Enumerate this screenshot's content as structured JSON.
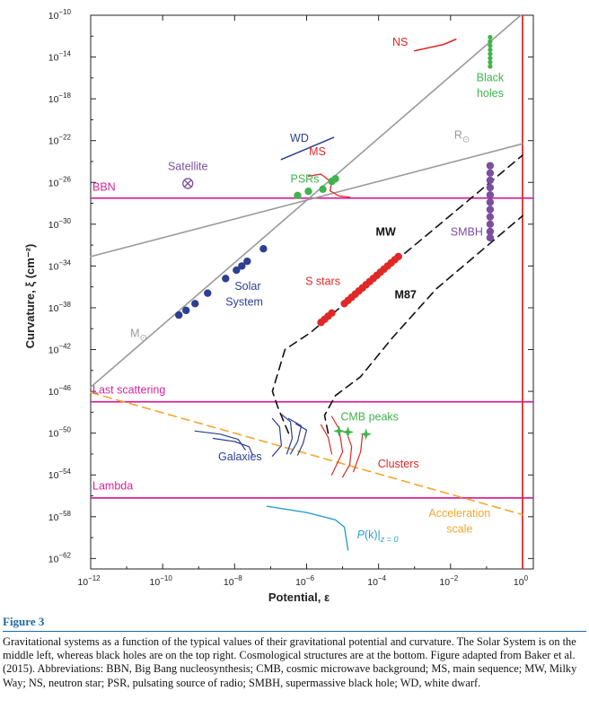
{
  "figure": {
    "label": "Figure 3",
    "caption": "Gravitational systems as a function of the typical values of their gravitational potential and curvature. The Solar System is on the middle left, whereas black holes are on the top right. Cosmological structures are at the bottom. Figure adapted from Baker et al. (2015). Abbreviations: BBN, Big Bang nucleosynthesis; CMB, cosmic microwave background; MS, main sequence; MW, Milky Way; NS, neutron star; PSR, pulsating source of radio; SMBH, supermassive black hole; WD, white dwarf."
  },
  "chart_data": {
    "type": "scatter",
    "xlabel": "Potential, ε",
    "ylabel": "Curvature, ξ (cm⁻²)",
    "x_scale": "log",
    "y_scale": "log",
    "xlim_log10": [
      -12,
      0.3
    ],
    "ylim_log10": [
      -63,
      -10
    ],
    "x_ticks": [
      {
        "exp": -12,
        "label": "10",
        "sup": "−12"
      },
      {
        "exp": -10,
        "label": "10",
        "sup": "−10"
      },
      {
        "exp": -8,
        "label": "10",
        "sup": "−8"
      },
      {
        "exp": -6,
        "label": "10",
        "sup": "−6"
      },
      {
        "exp": -4,
        "label": "10",
        "sup": "−4"
      },
      {
        "exp": -2,
        "label": "10",
        "sup": "−2"
      },
      {
        "exp": 0,
        "label": "10",
        "sup": "0"
      }
    ],
    "y_ticks": [
      {
        "exp": -10,
        "label": "10",
        "sup": "−10"
      },
      {
        "exp": -14,
        "label": "10",
        "sup": "−14"
      },
      {
        "exp": -18,
        "label": "10",
        "sup": "−18"
      },
      {
        "exp": -22,
        "label": "10",
        "sup": "−22"
      },
      {
        "exp": -26,
        "label": "10",
        "sup": "−26"
      },
      {
        "exp": -30,
        "label": "10",
        "sup": "−30"
      },
      {
        "exp": -34,
        "label": "10",
        "sup": "−34"
      },
      {
        "exp": -38,
        "label": "10",
        "sup": "−38"
      },
      {
        "exp": -42,
        "label": "10",
        "sup": "−42"
      },
      {
        "exp": -46,
        "label": "10",
        "sup": "−46"
      },
      {
        "exp": -50,
        "label": "10",
        "sup": "−50"
      },
      {
        "exp": -54,
        "label": "10",
        "sup": "−54"
      },
      {
        "exp": -58,
        "label": "10",
        "sup": "−58"
      },
      {
        "exp": -62,
        "label": "10",
        "sup": "−62"
      }
    ],
    "colors": {
      "axis": "#222222",
      "gray": "#9a9a9a",
      "magenta": "#d4249a",
      "red": "#e02826",
      "blue": "#2d3f93",
      "green": "#3fb44b",
      "purple": "#7a4fa0",
      "orange": "#f0a830",
      "cyan": "#2a9fd0",
      "black": "#111111"
    },
    "hlines": [
      {
        "name": "BBN",
        "y": -27.5,
        "color": "magenta"
      },
      {
        "name": "Last scattering",
        "y": -47.0,
        "color": "magenta"
      },
      {
        "name": "Lambda",
        "y": -56.2,
        "color": "magenta"
      }
    ],
    "vlines": [
      {
        "x": 0,
        "color": "red"
      }
    ],
    "lines": [
      {
        "name": "M⊙",
        "color": "gray",
        "width": 1.6,
        "dash": false,
        "points": [
          [
            -12,
            -45.6
          ],
          [
            -0.05,
            -10
          ]
        ]
      },
      {
        "name": "R⊙",
        "color": "gray",
        "width": 1.6,
        "dash": false,
        "points": [
          [
            -12,
            -33.1
          ],
          [
            0,
            -22.3
          ]
        ]
      },
      {
        "name": "MW",
        "color": "black",
        "width": 1.6,
        "dash": true,
        "points": [
          [
            -6.5,
            -50
          ],
          [
            -6.8,
            -47.5
          ],
          [
            -6.95,
            -46
          ],
          [
            -6.6,
            -42
          ],
          [
            -5.9,
            -40.4
          ],
          [
            -4.6,
            -36.6
          ],
          [
            0,
            -23.4
          ]
        ]
      },
      {
        "name": "M87",
        "color": "black",
        "width": 1.6,
        "dash": true,
        "points": [
          [
            -5.4,
            -50
          ],
          [
            -5.5,
            -48.3
          ],
          [
            -5.2,
            -46.4
          ],
          [
            -4.5,
            -44.6
          ],
          [
            -3.6,
            -40.8
          ],
          [
            -2.4,
            -36.2
          ],
          [
            0,
            -29.2
          ]
        ]
      },
      {
        "name": "Acceleration scale",
        "color": "orange",
        "width": 1.6,
        "dash": true,
        "points": [
          [
            -12,
            -46.1
          ],
          [
            0,
            -57.8
          ]
        ]
      },
      {
        "name": "WD",
        "color": "blue",
        "width": 1.6,
        "dash": false,
        "points": [
          [
            -6.7,
            -23.8
          ],
          [
            -5.25,
            -21.7
          ]
        ]
      },
      {
        "name": "NS",
        "color": "red",
        "width": 1.6,
        "dash": false,
        "points": [
          [
            -3.0,
            -13.4
          ],
          [
            -2.2,
            -12.8
          ],
          [
            -1.85,
            -12.3
          ]
        ]
      },
      {
        "name": "MS",
        "color": "red",
        "width": 1.3,
        "dash": false,
        "points": [
          [
            -5.95,
            -25.4
          ],
          [
            -5.6,
            -25.2
          ],
          [
            -5.3,
            -26.0
          ],
          [
            -5.35,
            -26.8
          ],
          [
            -5.1,
            -27.3
          ],
          [
            -4.8,
            -27.4
          ]
        ]
      },
      {
        "name": "P(k)|z=0",
        "color": "cyan",
        "width": 1.4,
        "dash": false,
        "points": [
          [
            -7.1,
            -57.0
          ],
          [
            -6.0,
            -57.6
          ],
          [
            -5.2,
            -58.3
          ],
          [
            -4.95,
            -59.0
          ],
          [
            -4.85,
            -61.2
          ]
        ]
      },
      {
        "name": "Galaxies 1",
        "color": "blue",
        "width": 1.2,
        "dash": false,
        "points": [
          [
            -9.1,
            -49.8
          ],
          [
            -8.4,
            -50.1
          ],
          [
            -7.9,
            -50.6
          ],
          [
            -7.7,
            -51.6
          ]
        ]
      },
      {
        "name": "Galaxies 2",
        "color": "blue",
        "width": 1.2,
        "dash": false,
        "points": [
          [
            -8.6,
            -50.5
          ],
          [
            -8.0,
            -50.8
          ],
          [
            -7.6,
            -51.3
          ],
          [
            -7.5,
            -52.1
          ]
        ]
      },
      {
        "name": "Galaxies 3",
        "color": "blue",
        "width": 1.2,
        "dash": false,
        "points": [
          [
            -6.7,
            -48.2
          ],
          [
            -6.45,
            -48.9
          ],
          [
            -6.4,
            -50.5
          ],
          [
            -6.55,
            -52.0
          ]
        ]
      },
      {
        "name": "Galaxies 4",
        "color": "blue",
        "width": 1.2,
        "dash": false,
        "points": [
          [
            -6.5,
            -48.6
          ],
          [
            -6.15,
            -49.3
          ],
          [
            -6.25,
            -50.8
          ],
          [
            -6.45,
            -52.0
          ]
        ]
      },
      {
        "name": "Galaxies 5",
        "color": "blue",
        "width": 1.2,
        "dash": false,
        "points": [
          [
            -6.3,
            -49.1
          ],
          [
            -6.0,
            -49.7
          ],
          [
            -6.1,
            -51.0
          ],
          [
            -6.25,
            -52.1
          ]
        ]
      },
      {
        "name": "Galaxies 6",
        "color": "blue",
        "width": 1.2,
        "dash": false,
        "points": [
          [
            -6.95,
            -48.6
          ],
          [
            -6.75,
            -49.4
          ],
          [
            -6.7,
            -51.2
          ],
          [
            -6.95,
            -52.2
          ]
        ]
      },
      {
        "name": "Clusters 1",
        "color": "red",
        "width": 1.2,
        "dash": false,
        "points": [
          [
            -5.3,
            -48.4
          ],
          [
            -5.1,
            -49.6
          ],
          [
            -5.0,
            -51.8
          ],
          [
            -5.3,
            -54.0
          ]
        ]
      },
      {
        "name": "Clusters 2",
        "color": "red",
        "width": 1.2,
        "dash": false,
        "points": [
          [
            -4.9,
            -49.8
          ],
          [
            -4.75,
            -51.3
          ],
          [
            -4.8,
            -53.0
          ],
          [
            -5.0,
            -54.2
          ]
        ]
      },
      {
        "name": "Clusters 3",
        "color": "red",
        "width": 1.2,
        "dash": false,
        "points": [
          [
            -4.45,
            -50.2
          ],
          [
            -4.5,
            -51.8
          ],
          [
            -4.7,
            -53.7
          ]
        ]
      },
      {
        "name": "Clusters 4",
        "color": "red",
        "width": 1.2,
        "dash": false,
        "points": [
          [
            -5.6,
            -49.2
          ],
          [
            -5.4,
            -50.4
          ],
          [
            -5.3,
            -52.0
          ]
        ]
      }
    ],
    "series": [
      {
        "name": "Solar System",
        "color": "blue",
        "r": 4.2,
        "points": [
          [
            -9.55,
            -38.7
          ],
          [
            -9.35,
            -38.25
          ],
          [
            -9.1,
            -37.6
          ],
          [
            -8.75,
            -36.6
          ],
          [
            -8.25,
            -35.2
          ],
          [
            -7.95,
            -34.4
          ],
          [
            -7.8,
            -34.0
          ],
          [
            -7.65,
            -33.55
          ],
          [
            -7.2,
            -32.35
          ]
        ]
      },
      {
        "name": "PSRs",
        "color": "green",
        "r": 4.2,
        "points": [
          [
            -6.25,
            -27.25
          ],
          [
            -5.95,
            -26.85
          ],
          [
            -5.55,
            -26.65
          ]
        ]
      },
      {
        "name": "MS",
        "color": "green",
        "r": 4.2,
        "points": [
          [
            -5.3,
            -25.9
          ],
          [
            -5.2,
            -25.65
          ]
        ]
      },
      {
        "name": "Black holes",
        "color": "green",
        "r": 2.6,
        "points": [
          [
            -0.9,
            -12.1
          ],
          [
            -0.9,
            -12.5
          ],
          [
            -0.9,
            -12.9
          ],
          [
            -0.9,
            -13.3
          ],
          [
            -0.9,
            -13.7
          ],
          [
            -0.9,
            -14.1
          ],
          [
            -0.9,
            -14.5
          ],
          [
            -0.9,
            -14.9
          ]
        ]
      },
      {
        "name": "S stars",
        "color": "red",
        "r": 4.2,
        "points": [
          [
            -5.6,
            -39.4
          ],
          [
            -5.5,
            -39.1
          ],
          [
            -5.4,
            -38.8
          ],
          [
            -5.3,
            -38.5
          ],
          [
            -4.95,
            -37.6
          ],
          [
            -4.85,
            -37.3
          ],
          [
            -4.75,
            -37.0
          ],
          [
            -4.65,
            -36.7
          ],
          [
            -4.55,
            -36.4
          ],
          [
            -4.45,
            -36.1
          ],
          [
            -4.35,
            -35.8
          ],
          [
            -4.25,
            -35.5
          ],
          [
            -4.15,
            -35.2
          ],
          [
            -4.05,
            -34.9
          ],
          [
            -3.95,
            -34.6
          ],
          [
            -3.85,
            -34.3
          ],
          [
            -3.75,
            -34.0
          ],
          [
            -3.65,
            -33.7
          ],
          [
            -3.55,
            -33.4
          ],
          [
            -3.45,
            -33.1
          ]
        ]
      },
      {
        "name": "SMBH",
        "color": "purple",
        "r": 4.2,
        "points": [
          [
            -0.9,
            -24.4
          ],
          [
            -0.9,
            -25.1
          ],
          [
            -0.9,
            -25.8
          ],
          [
            -0.9,
            -26.5
          ],
          [
            -0.9,
            -27.2
          ],
          [
            -0.9,
            -27.9
          ],
          [
            -0.9,
            -28.6
          ],
          [
            -0.9,
            -29.3
          ],
          [
            -0.9,
            -30.0
          ],
          [
            -0.9,
            -30.7
          ],
          [
            -0.9,
            -31.3
          ]
        ]
      }
    ],
    "markers": [
      {
        "name": "CMB peaks",
        "shape": "star",
        "color": "green",
        "points": [
          [
            -5.1,
            -49.8
          ],
          [
            -4.85,
            -49.9
          ],
          [
            -4.35,
            -50.1
          ]
        ]
      },
      {
        "name": "Satellite",
        "shape": "otimes",
        "color": "purple",
        "points": [
          [
            -9.3,
            -26.1
          ]
        ]
      }
    ],
    "labels": [
      {
        "text": "BBN",
        "color": "magenta",
        "x": -11.95,
        "y": -26.8,
        "anchor": "start",
        "size": 12.5,
        "bold": false
      },
      {
        "text": "Last scattering",
        "color": "magenta",
        "x": -11.95,
        "y": -46.2,
        "anchor": "start",
        "size": 12.5,
        "bold": false
      },
      {
        "text": "Lambda",
        "color": "magenta",
        "x": -11.95,
        "y": -55.4,
        "anchor": "start",
        "size": 12.5,
        "bold": false
      },
      {
        "text": "Satellite",
        "color": "purple",
        "x": -9.3,
        "y": -24.8,
        "anchor": "middle",
        "size": 12.5,
        "bold": false
      },
      {
        "text": "PSRs",
        "color": "green",
        "x": -6.05,
        "y": -26.0,
        "anchor": "middle",
        "size": 12.5,
        "bold": false
      },
      {
        "text": "MS",
        "color": "red",
        "x": -5.7,
        "y": -23.4,
        "anchor": "middle",
        "size": 12.5,
        "bold": false
      },
      {
        "text": "WD",
        "color": "blue",
        "x": -6.2,
        "y": -22.1,
        "anchor": "middle",
        "size": 12.5,
        "bold": false
      },
      {
        "text": "NS",
        "color": "red",
        "x": -3.4,
        "y": -12.9,
        "anchor": "middle",
        "size": 12.5,
        "bold": false
      },
      {
        "text": "Black",
        "color": "green",
        "x": -0.9,
        "y": -16.3,
        "anchor": "middle",
        "size": 12.5,
        "bold": false
      },
      {
        "text": "holes",
        "color": "green",
        "x": -0.9,
        "y": -17.8,
        "anchor": "middle",
        "size": 12.5,
        "bold": false
      },
      {
        "text": "Solar",
        "color": "blue",
        "x": -8.0,
        "y": -36.3,
        "anchor": "start",
        "size": 12.5,
        "bold": false
      },
      {
        "text": "System",
        "color": "blue",
        "x": -8.25,
        "y": -37.8,
        "anchor": "start",
        "size": 12.5,
        "bold": false
      },
      {
        "text": "MW",
        "color": "black",
        "x": -3.8,
        "y": -31.1,
        "anchor": "middle",
        "size": 12.5,
        "bold": true
      },
      {
        "text": "SMBH",
        "color": "purple",
        "x": -1.55,
        "y": -31.1,
        "anchor": "middle",
        "size": 12.5,
        "bold": false
      },
      {
        "text": "S stars",
        "color": "red",
        "x": -5.55,
        "y": -35.8,
        "anchor": "middle",
        "size": 12.5,
        "bold": false
      },
      {
        "text": "M87",
        "color": "black",
        "x": -3.25,
        "y": -37.1,
        "anchor": "middle",
        "size": 12.5,
        "bold": true
      },
      {
        "text": "CMB peaks",
        "color": "green",
        "x": -4.25,
        "y": -48.8,
        "anchor": "middle",
        "size": 12.5,
        "bold": false
      },
      {
        "text": "Galaxies",
        "color": "blue",
        "x": -7.85,
        "y": -52.6,
        "anchor": "middle",
        "size": 12.5,
        "bold": false
      },
      {
        "text": "Clusters",
        "color": "red",
        "x": -3.45,
        "y": -53.3,
        "anchor": "middle",
        "size": 12.5,
        "bold": false
      },
      {
        "text": "Acceleration",
        "color": "orange",
        "x": -1.75,
        "y": -58.0,
        "anchor": "middle",
        "size": 12.5,
        "bold": false
      },
      {
        "text": "scale",
        "color": "orange",
        "x": -1.75,
        "y": -59.5,
        "anchor": "middle",
        "size": 12.5,
        "bold": false
      }
    ],
    "sub_labels": [
      {
        "text": "M",
        "sub": "⊙",
        "color": "gray",
        "x": -10.9,
        "y": -40.8
      },
      {
        "text": "R",
        "sub": "⊙",
        "color": "gray",
        "x": -1.9,
        "y": -21.8
      }
    ],
    "pk_label": {
      "text": "P",
      "mid": "(k)|",
      "sub": "z = 0",
      "color": "cyan",
      "x": -4.6,
      "y": -60.1
    }
  }
}
